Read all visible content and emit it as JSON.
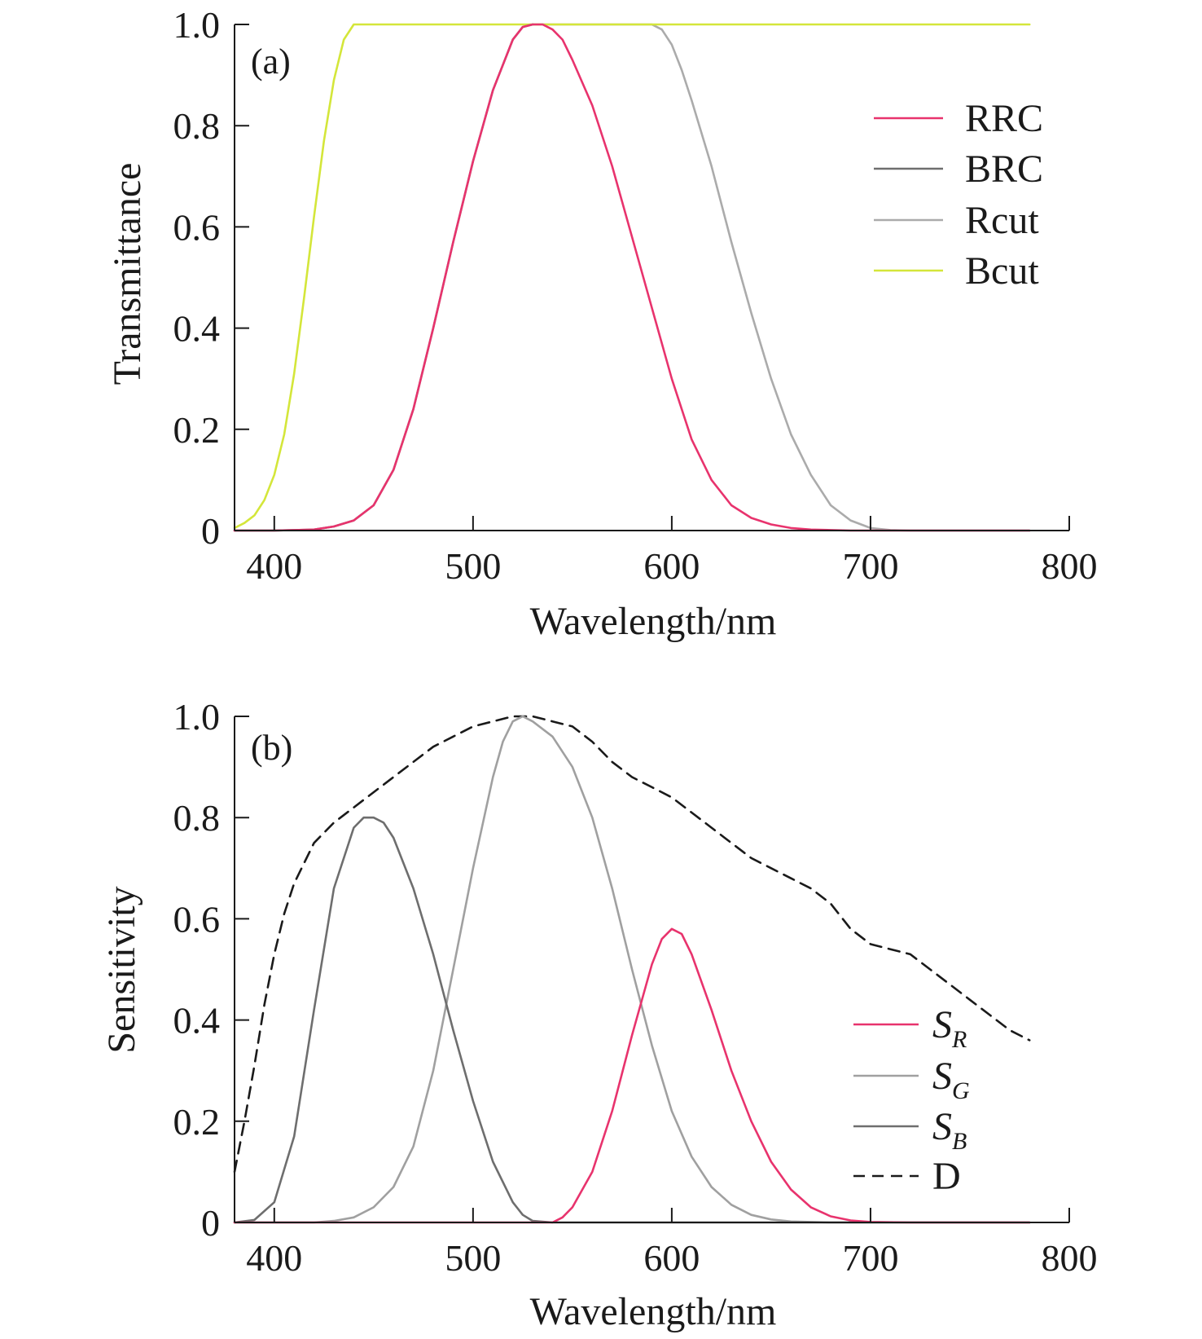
{
  "chart_data": [
    {
      "type": "line",
      "panel_label": "(a)",
      "xlabel": "Wavelength/nm",
      "ylabel": "Transmittance",
      "xlim": [
        380,
        800
      ],
      "ylim": [
        0,
        1.0
      ],
      "xticks": [
        "400",
        "500",
        "600",
        "700",
        "800"
      ],
      "yticks": [
        "0",
        "0.2",
        "0.4",
        "0.6",
        "0.8",
        "1.0"
      ],
      "grid": false,
      "legend_position": "top-right",
      "series": [
        {
          "name": "RRC",
          "color": "#e8336d",
          "x": [
            380,
            400,
            420,
            430,
            440,
            450,
            460,
            470,
            480,
            490,
            500,
            505,
            510,
            515,
            520,
            525,
            530,
            535,
            540,
            545,
            550,
            560,
            570,
            580,
            590,
            600,
            610,
            620,
            630,
            640,
            650,
            660,
            670,
            680,
            690,
            700,
            720,
            780
          ],
          "y": [
            0,
            0,
            0.002,
            0.008,
            0.02,
            0.05,
            0.12,
            0.24,
            0.4,
            0.57,
            0.73,
            0.8,
            0.87,
            0.92,
            0.97,
            0.995,
            1.0,
            1.0,
            0.99,
            0.97,
            0.93,
            0.84,
            0.72,
            0.58,
            0.44,
            0.3,
            0.18,
            0.1,
            0.05,
            0.025,
            0.012,
            0.005,
            0.002,
            0.001,
            0,
            0,
            0,
            0
          ]
        },
        {
          "name": "BRC",
          "color": "#6e6e6e",
          "x": [
            380,
            400,
            420,
            430,
            440,
            450,
            460,
            470,
            480,
            490,
            500,
            505,
            510,
            515,
            520,
            525,
            530
          ],
          "y": [
            0,
            0,
            0.002,
            0.008,
            0.02,
            0.05,
            0.12,
            0.24,
            0.4,
            0.57,
            0.73,
            0.8,
            0.87,
            0.92,
            0.97,
            0.995,
            1.0
          ]
        },
        {
          "name": "Rcut",
          "color": "#ababab",
          "x": [
            530,
            540,
            560,
            580,
            590,
            595,
            600,
            605,
            610,
            620,
            630,
            640,
            650,
            660,
            670,
            680,
            690,
            700,
            710,
            720,
            780
          ],
          "y": [
            1.0,
            1.0,
            1.0,
            1.0,
            1.0,
            0.99,
            0.96,
            0.91,
            0.85,
            0.72,
            0.57,
            0.43,
            0.3,
            0.19,
            0.11,
            0.05,
            0.02,
            0.005,
            0.001,
            0,
            0
          ]
        },
        {
          "name": "Bcut",
          "color": "#d4e63a",
          "x": [
            380,
            385,
            390,
            395,
            400,
            405,
            410,
            415,
            420,
            425,
            430,
            435,
            440,
            450,
            500,
            600,
            700,
            780
          ],
          "y": [
            0.005,
            0.015,
            0.03,
            0.06,
            0.11,
            0.19,
            0.31,
            0.46,
            0.62,
            0.77,
            0.89,
            0.97,
            1.0,
            1.0,
            1.0,
            1.0,
            1.0,
            1.0
          ]
        }
      ]
    },
    {
      "type": "line",
      "panel_label": "(b)",
      "xlabel": "Wavelength/nm",
      "ylabel": "Sensitivity",
      "xlim": [
        380,
        800
      ],
      "ylim": [
        0,
        1.0
      ],
      "xticks": [
        "400",
        "500",
        "600",
        "700",
        "800"
      ],
      "yticks": [
        "0",
        "0.2",
        "0.4",
        "0.6",
        "0.8",
        "1.0"
      ],
      "grid": false,
      "legend_position": "bottom-right",
      "series": [
        {
          "name": "S",
          "subscript": "R",
          "color": "#e8336d",
          "x": [
            380,
            530,
            540,
            545,
            550,
            560,
            570,
            580,
            590,
            595,
            600,
            605,
            610,
            620,
            630,
            640,
            650,
            660,
            670,
            680,
            690,
            700,
            720,
            780
          ],
          "y": [
            0,
            0,
            0,
            0.01,
            0.03,
            0.1,
            0.22,
            0.37,
            0.51,
            0.56,
            0.58,
            0.57,
            0.53,
            0.42,
            0.3,
            0.2,
            0.12,
            0.065,
            0.03,
            0.012,
            0.004,
            0.001,
            0,
            0
          ]
        },
        {
          "name": "S",
          "subscript": "G",
          "color": "#a0a0a0",
          "x": [
            380,
            420,
            430,
            440,
            450,
            460,
            470,
            480,
            490,
            500,
            510,
            515,
            520,
            525,
            530,
            540,
            550,
            560,
            570,
            580,
            590,
            600,
            610,
            620,
            630,
            640,
            650,
            660,
            680,
            700,
            780
          ],
          "y": [
            0,
            0,
            0.003,
            0.01,
            0.03,
            0.07,
            0.15,
            0.3,
            0.5,
            0.7,
            0.88,
            0.95,
            0.99,
            1.0,
            0.99,
            0.96,
            0.9,
            0.8,
            0.66,
            0.5,
            0.35,
            0.22,
            0.13,
            0.07,
            0.035,
            0.015,
            0.006,
            0.002,
            0,
            0,
            0
          ]
        },
        {
          "name": "S",
          "subscript": "B",
          "color": "#6e6e6e",
          "x": [
            380,
            390,
            400,
            410,
            420,
            430,
            440,
            445,
            450,
            455,
            460,
            470,
            480,
            490,
            500,
            510,
            520,
            525,
            530,
            540,
            780
          ],
          "y": [
            0,
            0.005,
            0.04,
            0.17,
            0.42,
            0.66,
            0.78,
            0.8,
            0.8,
            0.79,
            0.76,
            0.66,
            0.53,
            0.38,
            0.24,
            0.12,
            0.04,
            0.015,
            0.003,
            0,
            0
          ]
        },
        {
          "name": "D",
          "color": "#1a1a1a",
          "dashed": true,
          "x": [
            380,
            385,
            390,
            395,
            400,
            405,
            410,
            415,
            420,
            430,
            440,
            450,
            460,
            470,
            480,
            490,
            500,
            510,
            520,
            530,
            540,
            550,
            560,
            570,
            580,
            590,
            600,
            610,
            620,
            630,
            640,
            650,
            660,
            670,
            680,
            690,
            700,
            710,
            720,
            730,
            740,
            750,
            760,
            770,
            780
          ],
          "y": [
            0.1,
            0.2,
            0.31,
            0.43,
            0.53,
            0.61,
            0.67,
            0.71,
            0.75,
            0.79,
            0.82,
            0.85,
            0.88,
            0.91,
            0.94,
            0.96,
            0.98,
            0.99,
            1.0,
            1.0,
            0.99,
            0.98,
            0.95,
            0.91,
            0.88,
            0.86,
            0.84,
            0.81,
            0.78,
            0.75,
            0.72,
            0.7,
            0.68,
            0.66,
            0.63,
            0.58,
            0.55,
            0.54,
            0.53,
            0.5,
            0.47,
            0.44,
            0.41,
            0.38,
            0.36
          ]
        }
      ]
    }
  ]
}
